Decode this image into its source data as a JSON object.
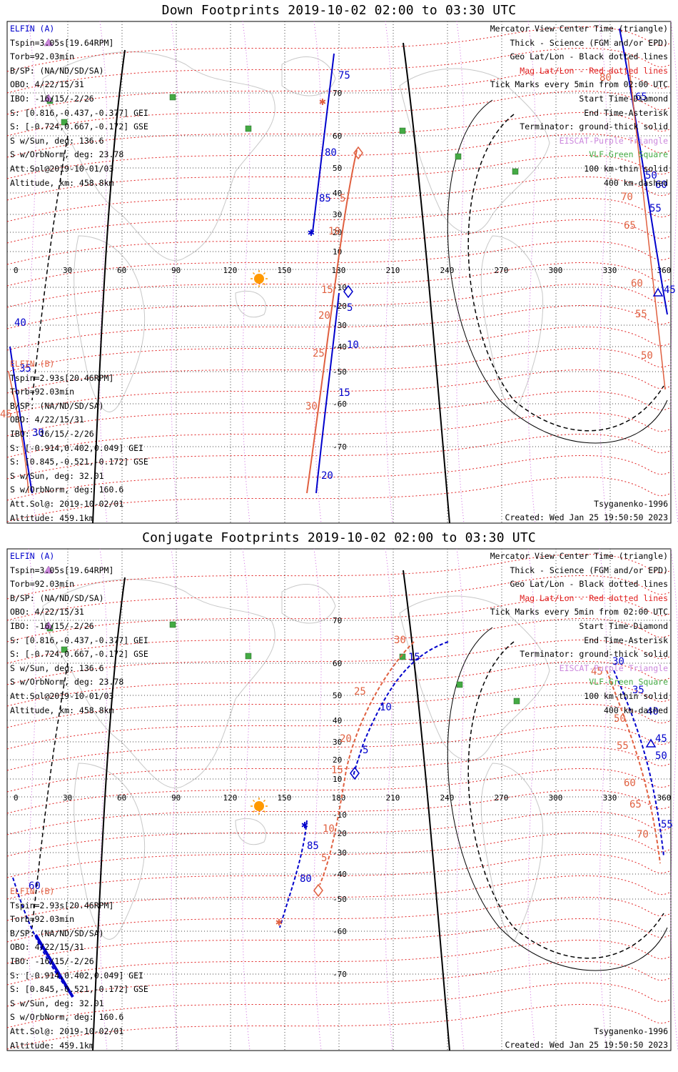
{
  "panels": [
    {
      "title": "Down Footprints 2019-10-02 02:00 to 03:30 UTC",
      "elfin_a": {
        "name": "ELFIN (A)",
        "lines": [
          "Tspin=3.05s[19.64RPM]",
          "Torb=92.03min",
          "B/SP: (NA/ND/SD/SA)",
          "OBO: 4/22/15/31",
          "IBO: -16/15/-2/26",
          "S: [0.816,-0.437,-0.377] GEI",
          "S: [-0.724,0.667,-0.172] GSE",
          "S w/Sun, deg: 136.6",
          "S w/OrbNorm, deg: 23.78",
          "Att.Sol@2019-10-01/03",
          "Altitude, km: 458.8km"
        ]
      },
      "elfin_b": {
        "name": "ELFIN (B)",
        "lines": [
          "Tspin=2.93s[20.46RPM]",
          "Torb=92.03min",
          "B/SP: (NA/ND/SD/SA)",
          "OBO: 4/22/15/31",
          "IBO: -16/15/-2/26",
          "S: [-0.914,0.402,0.049] GEI",
          "S: [0.845,-0.521,-0.172] GSE",
          "S w/Sun, deg: 32.01",
          "S w/OrbNorm, deg: 160.6",
          "Att.Sol@: 2019-10-02/01",
          "Altitude: 459.1km"
        ]
      },
      "legend": [
        {
          "text": "Mercator View Center Time (triangle)",
          "color": "#000000"
        },
        {
          "text": "Thick - Science (FGM and/or EPD)",
          "color": "#000000"
        },
        {
          "text": "Geo Lat/Lon - Black dotted lines",
          "color": "#000000"
        },
        {
          "text": "Mag Lat/Lon - Red dotted lines",
          "color": "#e02020"
        },
        {
          "text": "Tick Marks every 5min from 02:00 UTC",
          "color": "#000000"
        },
        {
          "text": "Start Time-Diamond",
          "color": "#000000"
        },
        {
          "text": "End Time-Asterisk",
          "color": "#000000"
        },
        {
          "text": "Terminator: ground-thick solid",
          "color": "#000000"
        },
        {
          "text": "EISCAT-Purple Triangle",
          "color": "#cc88dd"
        },
        {
          "text": "VLF-Green Square",
          "color": "#44aa44"
        },
        {
          "text": "100 km-thin solid",
          "color": "#000000"
        },
        {
          "text": "400 km-dashed",
          "color": "#000000"
        }
      ],
      "model": "Tsyganenko-1996",
      "created": "Created: Wed Jan 25 19:50:50 2023",
      "lon_ticks": [
        "0",
        "30",
        "60",
        "90",
        "120",
        "150",
        "180",
        "210",
        "240",
        "270",
        "300",
        "330",
        "360"
      ],
      "lat_ticks": [
        "70",
        "60",
        "50",
        "40",
        "30",
        "20",
        "10",
        "-10",
        "-20",
        "-30",
        "-40",
        "-50",
        "-60",
        "-70"
      ],
      "track_a_labels": [
        "75",
        "80",
        "85",
        "5",
        "10",
        "15",
        "20",
        "40",
        "35",
        "30",
        "45",
        "50",
        "55",
        "60",
        "65"
      ],
      "track_b_labels": [
        "5",
        "10",
        "15",
        "20",
        "25",
        "30",
        "45",
        "50",
        "55",
        "60",
        "65",
        "70",
        "80"
      ]
    },
    {
      "title": "Conjugate Footprints 2019-10-02 02:00 to 03:30 UTC",
      "elfin_a": {
        "name": "ELFIN (A)",
        "lines": [
          "Tspin=3.05s[19.64RPM]",
          "Torb=92.03min",
          "B/SP: (NA/ND/SD/SA)",
          "OBO: 4/22/15/31",
          "IBO: -16/15/-2/26",
          "S: [0.816,-0.437,-0.377] GEI",
          "S: [-0.724,0.667,-0.172] GSE",
          "S w/Sun, deg: 136.6",
          "S w/OrbNorm, deg: 23.78",
          "Att.Sol@2019-10-01/03",
          "Altitude, km: 458.8km"
        ]
      },
      "elfin_b": {
        "name": "ELFIN (B)",
        "lines": [
          "Tspin=2.93s[20.46RPM]",
          "Torb=92.03min",
          "B/SP: (NA/ND/SD/SA)",
          "OBO: 4/22/15/31",
          "IBO: -16/15/-2/26",
          "S: [-0.914,0.402,0.049] GEI",
          "S: [0.845,-0.521,-0.172] GSE",
          "S w/Sun, deg: 32.01",
          "S w/OrbNorm, deg: 160.6",
          "Att.Sol@: 2019-10-02/01",
          "Altitude: 459.1km"
        ]
      },
      "legend": [
        {
          "text": "Mercator View Center Time (triangle)",
          "color": "#000000"
        },
        {
          "text": "Thick - Science (FGM and/or EPD)",
          "color": "#000000"
        },
        {
          "text": "Geo Lat/Lon - Black dotted lines",
          "color": "#000000"
        },
        {
          "text": "Mag Lat/Lon - Red dotted lines",
          "color": "#e02020"
        },
        {
          "text": "Tick Marks every 5min from 02:00 UTC",
          "color": "#000000"
        },
        {
          "text": "Start Time-Diamond",
          "color": "#000000"
        },
        {
          "text": "End Time-Asterisk",
          "color": "#000000"
        },
        {
          "text": "Terminator: ground-thick solid",
          "color": "#000000"
        },
        {
          "text": "EISCAT-Purple Triangle",
          "color": "#cc88dd"
        },
        {
          "text": "VLF-Green Square",
          "color": "#44aa44"
        },
        {
          "text": "100 km-thin solid",
          "color": "#000000"
        },
        {
          "text": "400 km-dashed",
          "color": "#000000"
        }
      ],
      "model": "Tsyganenko-1996",
      "created": "Created: Wed Jan 25 19:50:50 2023",
      "lon_ticks": [
        "0",
        "30",
        "60",
        "90",
        "120",
        "150",
        "180",
        "210",
        "240",
        "270",
        "300",
        "330",
        "360"
      ],
      "lat_ticks": [
        "70",
        "60",
        "50",
        "40",
        "30",
        "20",
        "10",
        "-10",
        "-20",
        "-30",
        "-40",
        "-50",
        "-60",
        "-70"
      ],
      "track_a_labels": [
        "15",
        "10",
        "5",
        "85",
        "80",
        "60",
        "30",
        "35",
        "40",
        "45",
        "50",
        "55"
      ],
      "track_b_labels": [
        "30",
        "25",
        "20",
        "15",
        "10",
        "5",
        "45",
        "50",
        "55",
        "60",
        "65",
        "70"
      ]
    }
  ]
}
